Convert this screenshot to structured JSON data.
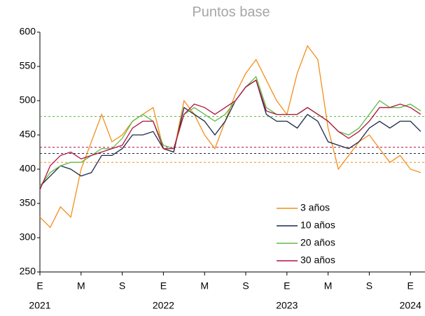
{
  "chart_data": {
    "type": "line",
    "subtitle": "Puntos base",
    "x": [
      "2021-01",
      "2021-02",
      "2021-03",
      "2021-04",
      "2021-05",
      "2021-06",
      "2021-07",
      "2021-08",
      "2021-09",
      "2021-10",
      "2021-11",
      "2021-12",
      "2022-01",
      "2022-02",
      "2022-03",
      "2022-04",
      "2022-05",
      "2022-06",
      "2022-07",
      "2022-08",
      "2022-09",
      "2022-10",
      "2022-11",
      "2022-12",
      "2023-01",
      "2023-02",
      "2023-03",
      "2023-04",
      "2023-05",
      "2023-06",
      "2023-07",
      "2023-08",
      "2023-09",
      "2023-10",
      "2023-11",
      "2023-12",
      "2024-01",
      "2024-02"
    ],
    "series": [
      {
        "name": "3 años",
        "color": "#f28e1c",
        "values": [
          330,
          315,
          345,
          330,
          400,
          440,
          480,
          440,
          450,
          470,
          480,
          490,
          430,
          425,
          500,
          480,
          450,
          430,
          470,
          510,
          540,
          560,
          530,
          500,
          480,
          540,
          580,
          560,
          460,
          400,
          420,
          440,
          450,
          430,
          410,
          420,
          400,
          395
        ]
      },
      {
        "name": "10 años",
        "color": "#1b2a49",
        "values": [
          375,
          390,
          405,
          400,
          390,
          395,
          420,
          420,
          430,
          450,
          450,
          455,
          430,
          425,
          490,
          480,
          470,
          450,
          470,
          500,
          520,
          530,
          480,
          470,
          470,
          460,
          480,
          470,
          440,
          435,
          430,
          440,
          460,
          470,
          460,
          470,
          470,
          455
        ]
      },
      {
        "name": "20 años",
        "color": "#5dbb46",
        "values": [
          375,
          395,
          405,
          410,
          410,
          420,
          430,
          430,
          445,
          470,
          480,
          470,
          435,
          430,
          480,
          490,
          480,
          470,
          480,
          500,
          520,
          535,
          490,
          480,
          480,
          480,
          490,
          480,
          470,
          455,
          450,
          460,
          480,
          500,
          490,
          490,
          495,
          485
        ]
      },
      {
        "name": "30 años",
        "color": "#b5123f",
        "values": [
          370,
          405,
          420,
          425,
          415,
          420,
          425,
          430,
          435,
          460,
          470,
          470,
          430,
          430,
          480,
          495,
          490,
          480,
          490,
          500,
          520,
          530,
          485,
          480,
          480,
          480,
          490,
          480,
          470,
          455,
          445,
          455,
          470,
          490,
          490,
          495,
          490,
          480
        ]
      }
    ],
    "reference_lines": [
      {
        "value": 477,
        "color": "#5dbb46"
      },
      {
        "value": 432,
        "color": "#b5123f"
      },
      {
        "value": 423,
        "color": "#1b2a49"
      },
      {
        "value": 410,
        "color": "#f28e1c"
      }
    ],
    "ylim": [
      250,
      600
    ],
    "yticks": [
      250,
      300,
      350,
      400,
      450,
      500,
      550,
      600
    ],
    "xticks": [
      {
        "value": "2021-01",
        "label": "E"
      },
      {
        "value": "2021-05",
        "label": "M"
      },
      {
        "value": "2021-09",
        "label": "S"
      },
      {
        "value": "2022-01",
        "label": "E"
      },
      {
        "value": "2022-05",
        "label": "M"
      },
      {
        "value": "2022-09",
        "label": "S"
      },
      {
        "value": "2023-01",
        "label": "E"
      },
      {
        "value": "2023-05",
        "label": "M"
      },
      {
        "value": "2023-09",
        "label": "S"
      },
      {
        "value": "2024-01",
        "label": "E"
      }
    ],
    "year_labels": [
      {
        "value": "2021-01",
        "label": "2021"
      },
      {
        "value": "2022-01",
        "label": "2022"
      },
      {
        "value": "2023-01",
        "label": "2023"
      },
      {
        "value": "2024-01",
        "label": "2024"
      }
    ],
    "legend": "lower right"
  }
}
